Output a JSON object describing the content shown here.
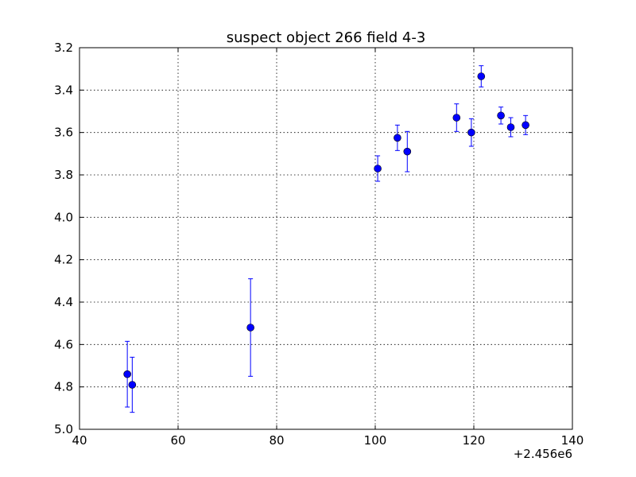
{
  "chart_data": {
    "type": "scatter",
    "title": "suspect object 266 field 4-3",
    "xlabel": "",
    "ylabel": "",
    "x_offset_label": "+2.456e6",
    "xlim": [
      40,
      140
    ],
    "ylim": [
      3.2,
      5.0
    ],
    "y_inverted": true,
    "grid": true,
    "x_ticks": [
      "40",
      "60",
      "80",
      "100",
      "120",
      "140"
    ],
    "y_ticks": [
      "3.2",
      "3.4",
      "3.6",
      "3.8",
      "4.0",
      "4.2",
      "4.4",
      "4.6",
      "4.8",
      "5.0"
    ],
    "marker_color": "#0000ff",
    "points": [
      {
        "x": 49.7,
        "y": 4.74,
        "err": 0.155
      },
      {
        "x": 50.7,
        "y": 4.79,
        "err": 0.13
      },
      {
        "x": 74.7,
        "y": 4.52,
        "err": 0.23
      },
      {
        "x": 100.5,
        "y": 3.77,
        "err": 0.06
      },
      {
        "x": 104.5,
        "y": 3.625,
        "err": 0.06
      },
      {
        "x": 106.5,
        "y": 3.69,
        "err": 0.095
      },
      {
        "x": 116.5,
        "y": 3.53,
        "err": 0.065
      },
      {
        "x": 119.5,
        "y": 3.6,
        "err": 0.065
      },
      {
        "x": 121.5,
        "y": 3.335,
        "err": 0.05
      },
      {
        "x": 125.5,
        "y": 3.52,
        "err": 0.04
      },
      {
        "x": 127.5,
        "y": 3.575,
        "err": 0.045
      },
      {
        "x": 130.5,
        "y": 3.565,
        "err": 0.045
      }
    ]
  }
}
